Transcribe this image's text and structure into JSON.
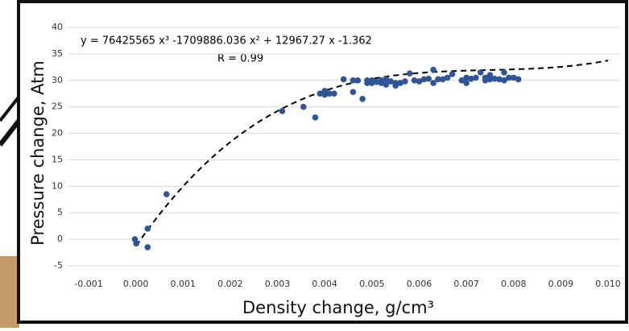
{
  "chart_data": {
    "type": "scatter",
    "annotations": [
      "y = 76425565 x³ -1709886.036 x² + 12967.27 x -1.362",
      "R = 0.99"
    ],
    "x_label": "Density change, g/cm³",
    "y_label": "Pressure change, Atm",
    "x": [
      -2e-05,
      1e-05,
      0.00025,
      0.00025,
      0.00065,
      0.0031,
      0.00355,
      0.0038,
      0.0039,
      0.004,
      0.004,
      0.0041,
      0.0042,
      0.0044,
      0.0046,
      0.0046,
      0.0047,
      0.0048,
      0.0049,
      0.0049,
      0.005,
      0.005,
      0.0051,
      0.0052,
      0.0052,
      0.0053,
      0.0053,
      0.0054,
      0.0055,
      0.0055,
      0.0056,
      0.0057,
      0.0058,
      0.0059,
      0.006,
      0.0061,
      0.0062,
      0.0063,
      0.0063,
      0.0064,
      0.0065,
      0.0066,
      0.0067,
      0.0069,
      0.007,
      0.007,
      0.0071,
      0.0072,
      0.0073,
      0.0074,
      0.0074,
      0.0075,
      0.0075,
      0.0076,
      0.0077,
      0.0078,
      0.0078,
      0.0079,
      0.008,
      0.0081
    ],
    "values": [
      0,
      -0.8,
      2,
      -1.5,
      8.5,
      24.2,
      25,
      23,
      27.5,
      28,
      27.3,
      27.5,
      27.5,
      30.2,
      30,
      27.8,
      30,
      26.5,
      29.5,
      30,
      30,
      29.5,
      29.7,
      30,
      29.5,
      30.2,
      29.2,
      29.8,
      29,
      29.5,
      29.5,
      29.8,
      31.3,
      30,
      29.8,
      30.2,
      30.3,
      29.5,
      32,
      30.2,
      30.2,
      30.5,
      31.2,
      30,
      29.5,
      30.5,
      30.3,
      30.5,
      31.5,
      30.5,
      30,
      31,
      30.2,
      30.3,
      30.2,
      31.5,
      30,
      30.5,
      30.5,
      30.2
    ],
    "color": "#2f5597",
    "trendline": {
      "coefficients": [
        76425565,
        -1709886.036,
        12967.27,
        -1.362
      ],
      "color": "#000000"
    },
    "xlim": [
      -0.001,
      0.01
    ],
    "xticks": [
      -0.001,
      {
        "value": 0,
        "label": "0.000"
      },
      0.001,
      0.002,
      0.003,
      0.004,
      0.005,
      0.006,
      0.007,
      0.008,
      0.009,
      {
        "value": 0.01,
        "label": "0.010"
      }
    ],
    "ylim": [
      -5,
      40
    ],
    "yticks": [
      -5,
      0,
      5,
      10,
      15,
      20,
      25,
      30,
      35,
      40
    ],
    "grid": true
  }
}
